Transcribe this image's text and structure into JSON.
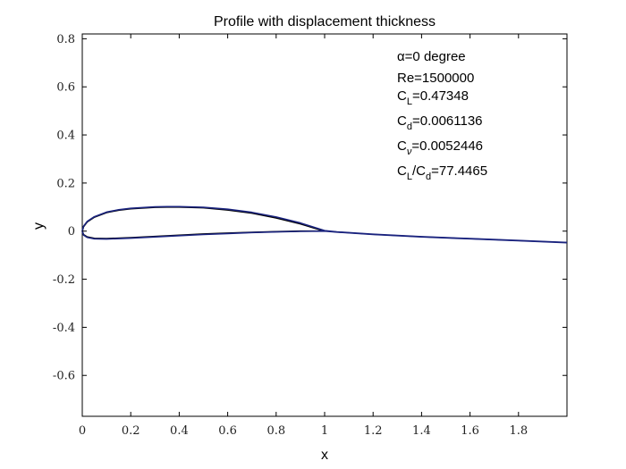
{
  "chart_data": {
    "type": "line",
    "title": "Profile with displacement thickness",
    "xlabel": "x",
    "ylabel": "y",
    "xlim": [
      0,
      2
    ],
    "ylim": [
      -0.77,
      0.82
    ],
    "xticks": [
      "0",
      "0.2",
      "0.4",
      "0.6",
      "0.8",
      "1",
      "1.2",
      "1.4",
      "1.6",
      "1.8"
    ],
    "xtick_values": [
      0,
      0.2,
      0.4,
      0.6,
      0.8,
      1.0,
      1.2,
      1.4,
      1.6,
      1.8
    ],
    "yticks": [
      "0.8",
      "0.6",
      "0.4",
      "0.2",
      "0",
      "-0.2",
      "-0.4",
      "-0.6"
    ],
    "ytick_values": [
      0.8,
      0.6,
      0.4,
      0.2,
      0,
      -0.2,
      -0.4,
      -0.6
    ],
    "grid": false,
    "series": [
      {
        "color": "#000000",
        "x": [
          1.0,
          0.95,
          0.9,
          0.8,
          0.7,
          0.6,
          0.5,
          0.4,
          0.35,
          0.3,
          0.2,
          0.15,
          0.1,
          0.05,
          0.02,
          0.005,
          0.0,
          0.005,
          0.02,
          0.05,
          0.1,
          0.2,
          0.3,
          0.4,
          0.5,
          0.6,
          0.7,
          0.8,
          0.9,
          1.0
        ],
        "y": [
          0.0,
          0.015,
          0.03,
          0.055,
          0.075,
          0.088,
          0.097,
          0.1,
          0.1,
          0.099,
          0.093,
          0.087,
          0.077,
          0.058,
          0.038,
          0.018,
          0.0,
          -0.014,
          -0.024,
          -0.03,
          -0.031,
          -0.027,
          -0.022,
          -0.017,
          -0.012,
          -0.008,
          -0.005,
          -0.002,
          0.0,
          0.0
        ]
      },
      {
        "color": "#1a237e",
        "x": [
          0.0,
          0.005,
          0.02,
          0.05,
          0.1,
          0.15,
          0.2,
          0.3,
          0.35,
          0.4,
          0.5,
          0.6,
          0.7,
          0.8,
          0.9,
          0.95,
          1.0,
          1.05,
          1.2,
          1.4,
          1.6,
          1.8,
          2.0
        ],
        "y": [
          0.0,
          0.02,
          0.04,
          0.06,
          0.079,
          0.089,
          0.095,
          0.101,
          0.102,
          0.102,
          0.099,
          0.091,
          0.078,
          0.059,
          0.034,
          0.018,
          0.002,
          -0.003,
          -0.013,
          -0.023,
          -0.031,
          -0.039,
          -0.047
        ]
      },
      {
        "color": "#1a237e",
        "x": [
          0.0,
          0.005,
          0.02,
          0.05,
          0.1,
          0.2,
          0.3,
          0.4,
          0.5,
          0.6,
          0.7,
          0.8,
          0.9,
          1.0,
          1.05,
          1.2,
          1.4,
          1.6,
          1.8,
          2.0
        ],
        "y": [
          0.0,
          -0.016,
          -0.026,
          -0.032,
          -0.033,
          -0.029,
          -0.024,
          -0.019,
          -0.014,
          -0.01,
          -0.006,
          -0.003,
          -0.001,
          0.0,
          -0.004,
          -0.014,
          -0.024,
          -0.032,
          -0.04,
          -0.048
        ]
      }
    ],
    "annotations": [
      {
        "text": "α=0 degree"
      },
      {
        "text": "Re=1500000"
      },
      {
        "base": "C",
        "sub": "L",
        "rest": "=0.47348"
      },
      {
        "base": "C",
        "sub": "d",
        "rest": "=0.0061136"
      },
      {
        "base": "C",
        "sub": "ν",
        "rest": "=0.0052446"
      },
      {
        "base": "C",
        "sub": "L",
        "mid": "/C",
        "sub2": "d",
        "rest": "=77.4465"
      }
    ]
  }
}
